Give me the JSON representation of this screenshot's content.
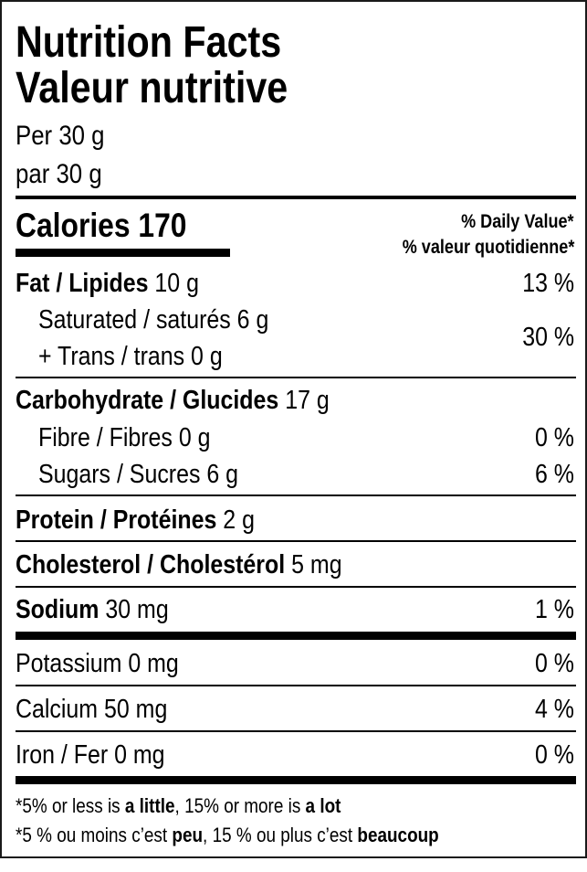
{
  "title_en": "Nutrition Facts",
  "title_fr": "Valeur nutritive",
  "serving_en": "Per 30 g",
  "serving_fr": "par 30 g",
  "calories_label": "Calories",
  "calories_value": "170",
  "dv_header_en": "% Daily Value*",
  "dv_header_fr": "% valeur quotidienne*",
  "fat": {
    "label": "Fat / Lipides",
    "amount": "10 g",
    "dv": "13 %"
  },
  "saturated": {
    "label": "Saturated / saturés 6 g"
  },
  "trans": {
    "label": "+ Trans / trans 0 g"
  },
  "sat_trans_dv": "30 %",
  "carbohydrate": {
    "label": "Carbohydrate / Glucides",
    "amount": "17 g"
  },
  "fibre": {
    "label": "Fibre / Fibres 0 g",
    "dv": "0 %"
  },
  "sugars": {
    "label": "Sugars / Sucres 6 g",
    "dv": "6 %"
  },
  "protein": {
    "label": "Protein / Protéines",
    "amount": "2 g"
  },
  "cholesterol": {
    "label": "Cholesterol / Cholestérol",
    "amount": "5 mg"
  },
  "sodium": {
    "label": "Sodium",
    "amount": "30 mg",
    "dv": "1 %"
  },
  "potassium": {
    "label": "Potassium 0 mg",
    "dv": "0 %"
  },
  "calcium": {
    "label": "Calcium 50 mg",
    "dv": "4 %"
  },
  "iron": {
    "label": "Iron / Fer 0 mg",
    "dv": "0 %"
  },
  "footnote_en": {
    "a": "*5% or less is ",
    "b": "a little",
    "c": ", 15% or more is ",
    "d": "a lot"
  },
  "footnote_fr": {
    "a": "*5 % ou moins c’est ",
    "b": "peu",
    "c": ", 15 % ou plus c’est ",
    "d": "beaucoup"
  }
}
